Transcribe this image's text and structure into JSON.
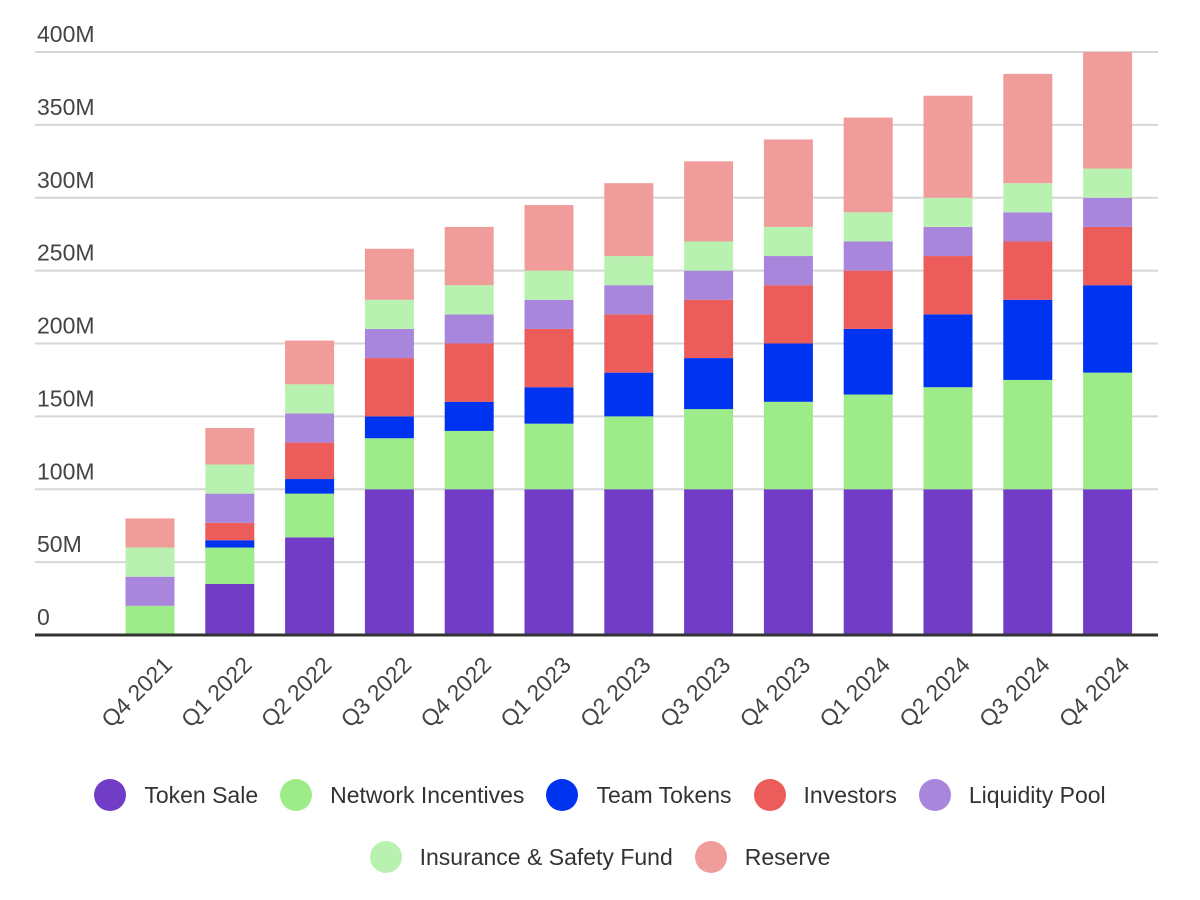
{
  "chart_data": {
    "type": "bar",
    "stacked": true,
    "categories": [
      "Q4 2021",
      "Q1 2022",
      "Q2 2022",
      "Q3 2022",
      "Q4 2022",
      "Q1 2023",
      "Q2 2023",
      "Q3 2023",
      "Q4 2023",
      "Q1 2024",
      "Q2 2024",
      "Q3 2024",
      "Q4 2024"
    ],
    "ylim": [
      0,
      400
    ],
    "yticks": [
      0,
      50,
      100,
      150,
      200,
      250,
      300,
      350,
      400
    ],
    "ytick_labels": [
      "0",
      "50M",
      "100M",
      "150M",
      "200M",
      "250M",
      "300M",
      "350M",
      "400M"
    ],
    "grid": true,
    "legend_position": "bottom",
    "series": [
      {
        "name": "Token Sale",
        "color": "#713cc6",
        "values": [
          0,
          35,
          67,
          100,
          100,
          100,
          100,
          100,
          100,
          100,
          100,
          100,
          100
        ]
      },
      {
        "name": "Network Incentives",
        "color": "#9eeb8a",
        "values": [
          20,
          25,
          30,
          35,
          40,
          45,
          50,
          55,
          60,
          65,
          70,
          75,
          80
        ]
      },
      {
        "name": "Team Tokens",
        "color": "#0033f0",
        "values": [
          0,
          5,
          10,
          15,
          20,
          25,
          30,
          35,
          40,
          45,
          50,
          55,
          60
        ]
      },
      {
        "name": "Investors",
        "color": "#eb5c5a",
        "values": [
          0,
          12,
          25,
          40,
          40,
          40,
          40,
          40,
          40,
          40,
          40,
          40,
          40
        ]
      },
      {
        "name": "Liquidity Pool",
        "color": "#a786dc",
        "values": [
          20,
          20,
          20,
          20,
          20,
          20,
          20,
          20,
          20,
          20,
          20,
          20,
          20
        ]
      },
      {
        "name": "Insurance & Safety Fund",
        "color": "#b9f2b0",
        "values": [
          20,
          20,
          20,
          20,
          20,
          20,
          20,
          20,
          20,
          20,
          20,
          20,
          20
        ]
      },
      {
        "name": "Reserve",
        "color": "#f09c9a",
        "values": [
          20,
          25,
          30,
          35,
          40,
          45,
          50,
          55,
          60,
          65,
          70,
          75,
          80
        ]
      }
    ]
  }
}
